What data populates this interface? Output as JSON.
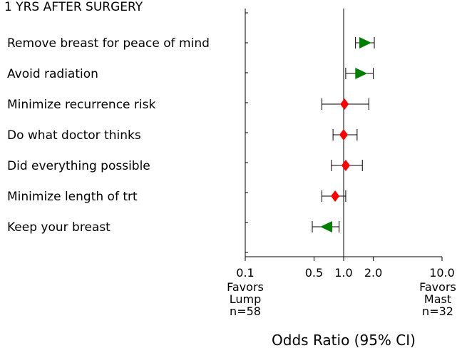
{
  "chart_data": {
    "type": "forest",
    "title": "1 YRS AFTER SURGERY",
    "xlabel": "Odds Ratio (95% CI)",
    "x_scale": "log",
    "xlim": [
      0.1,
      10.0
    ],
    "reference_line": 1.0,
    "x_ticks": [
      {
        "value": 0.1,
        "label": "0.1"
      },
      {
        "value": 0.5,
        "label": "0.5"
      },
      {
        "value": 1.0,
        "label": "1.0"
      },
      {
        "value": 2.0,
        "label": "2.0"
      },
      {
        "value": 10.0,
        "label": "10.0"
      }
    ],
    "left_note": {
      "lines": [
        "Favors",
        "Lump",
        "n=58"
      ]
    },
    "right_note": {
      "lines": [
        "Favors",
        "Mast",
        "n=32"
      ]
    },
    "colors": {
      "marker_red": "#ff0000",
      "marker_green": "#008000",
      "line": "#000000"
    },
    "items": [
      {
        "label": "Remove breast for peace of mind",
        "or": 1.65,
        "lo": 1.32,
        "hi": 2.05,
        "marker": "triangle-right",
        "color": "green"
      },
      {
        "label": "Avoid radiation",
        "or": 1.5,
        "lo": 1.05,
        "hi": 2.0,
        "marker": "triangle-right",
        "color": "green"
      },
      {
        "label": "Minimize recurrence risk",
        "or": 1.02,
        "lo": 0.6,
        "hi": 1.8,
        "marker": "diamond",
        "color": "red"
      },
      {
        "label": "Do what doctor thinks",
        "or": 1.0,
        "lo": 0.78,
        "hi": 1.37,
        "marker": "diamond",
        "color": "red"
      },
      {
        "label": "Did everything possible",
        "or": 1.05,
        "lo": 0.75,
        "hi": 1.55,
        "marker": "diamond",
        "color": "red"
      },
      {
        "label": "Minimize length of trt",
        "or": 0.82,
        "lo": 0.6,
        "hi": 1.05,
        "marker": "diamond",
        "color": "red"
      },
      {
        "label": "Keep your breast",
        "or": 0.67,
        "lo": 0.48,
        "hi": 0.9,
        "marker": "triangle-left",
        "color": "green"
      }
    ]
  }
}
